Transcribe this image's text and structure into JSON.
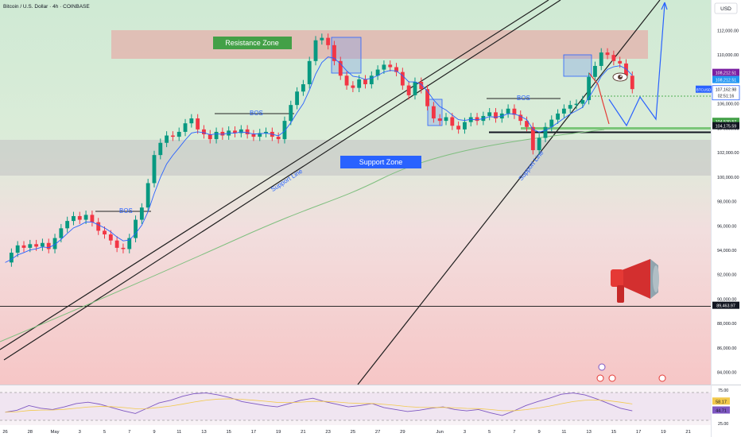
{
  "header": {
    "symbol_title": "Bitcoin / U.S. Dollar · 4h · COINBASE",
    "currency": "USD"
  },
  "chart_data": [
    {
      "type": "candlestick",
      "title": "Bitcoin / U.S. Dollar · 4h · COINBASE",
      "y_axis": {
        "range": [
          83000,
          114500
        ],
        "ticks": [
          84000,
          86000,
          88000,
          90000,
          92000,
          94000,
          96000,
          98000,
          100000,
          102000,
          104000,
          106000,
          108000,
          110000,
          112000
        ],
        "tick_labels": [
          "84,000.00",
          "86,000.00",
          "88,000.00",
          "90,000.00",
          "92,000.00",
          "94,000.00",
          "96,000.00",
          "98,000.00",
          "100,000.00",
          "102,000.00",
          "104,000.00",
          "106,000.00",
          "108,000.00",
          "110,000.00",
          "112,000.00"
        ]
      },
      "x_axis": {
        "range": [
          -0.1,
          56.5
        ],
        "ticks": [
          {
            "label": "26",
            "x": 0
          },
          {
            "label": "28",
            "x": 2
          },
          {
            "label": "May",
            "x": 4
          },
          {
            "label": "3",
            "x": 6
          },
          {
            "label": "5",
            "x": 8
          },
          {
            "label": "7",
            "x": 10
          },
          {
            "label": "9",
            "x": 12
          },
          {
            "label": "11",
            "x": 14
          },
          {
            "label": "13",
            "x": 16
          },
          {
            "label": "15",
            "x": 18
          },
          {
            "label": "17",
            "x": 20
          },
          {
            "label": "19",
            "x": 22
          },
          {
            "label": "21",
            "x": 24
          },
          {
            "label": "23",
            "x": 26
          },
          {
            "label": "25",
            "x": 28
          },
          {
            "label": "27",
            "x": 30
          },
          {
            "label": "29",
            "x": 32
          },
          {
            "label": "Jun",
            "x": 35
          },
          {
            "label": "3",
            "x": 37
          },
          {
            "label": "5",
            "x": 39
          },
          {
            "label": "7",
            "x": 41
          },
          {
            "label": "9",
            "x": 43
          },
          {
            "label": "11",
            "x": 45
          },
          {
            "label": "13",
            "x": 47
          },
          {
            "label": "15",
            "x": 49
          },
          {
            "label": "17",
            "x": 51
          },
          {
            "label": "19",
            "x": 53
          },
          {
            "label": "21",
            "x": 55
          }
        ]
      },
      "price_path": [
        [
          0,
          93000
        ],
        [
          0.5,
          93800
        ],
        [
          1,
          94400
        ],
        [
          1.5,
          94200
        ],
        [
          2,
          94500
        ],
        [
          2.5,
          94300
        ],
        [
          3,
          94600
        ],
        [
          3.5,
          94100
        ],
        [
          4,
          95000
        ],
        [
          4.5,
          95800
        ],
        [
          5,
          96400
        ],
        [
          5.5,
          96800
        ],
        [
          6,
          96500
        ],
        [
          6.5,
          96900
        ],
        [
          7,
          96300
        ],
        [
          7.5,
          95600
        ],
        [
          8,
          95300
        ],
        [
          8.5,
          94800
        ],
        [
          9,
          94200
        ],
        [
          9.5,
          94100
        ],
        [
          10,
          95000
        ],
        [
          10.5,
          96500
        ],
        [
          11,
          97500
        ],
        [
          11.5,
          99500
        ],
        [
          12,
          101800
        ],
        [
          12.5,
          102800
        ],
        [
          13,
          103400
        ],
        [
          13.5,
          103300
        ],
        [
          14,
          103700
        ],
        [
          14.5,
          104400
        ],
        [
          15,
          104800
        ],
        [
          15.5,
          103900
        ],
        [
          16,
          103500
        ],
        [
          16.5,
          103100
        ],
        [
          17,
          103700
        ],
        [
          17.5,
          103400
        ],
        [
          18,
          103800
        ],
        [
          18.5,
          103600
        ],
        [
          19,
          103900
        ],
        [
          19.5,
          103500
        ],
        [
          20,
          103300
        ],
        [
          20.5,
          103600
        ],
        [
          21,
          103700
        ],
        [
          21.5,
          103300
        ],
        [
          22,
          103100
        ],
        [
          22.5,
          104600
        ],
        [
          23,
          105900
        ],
        [
          23.5,
          107000
        ],
        [
          24,
          107600
        ],
        [
          24.5,
          109500
        ],
        [
          25,
          111200
        ],
        [
          25.5,
          111400
        ],
        [
          26,
          110800
        ],
        [
          26.5,
          109500
        ],
        [
          27,
          108300
        ],
        [
          27.5,
          107500
        ],
        [
          28,
          107300
        ],
        [
          28.5,
          108000
        ],
        [
          29,
          107600
        ],
        [
          29.5,
          108300
        ],
        [
          30,
          108800
        ],
        [
          30.5,
          109200
        ],
        [
          31,
          109000
        ],
        [
          31.5,
          108600
        ],
        [
          32,
          107500
        ],
        [
          32.5,
          106700
        ],
        [
          33,
          107800
        ],
        [
          33.5,
          107200
        ],
        [
          34,
          105800
        ],
        [
          34.5,
          104800
        ],
        [
          35,
          104600
        ],
        [
          35.5,
          104900
        ],
        [
          36,
          104200
        ],
        [
          36.5,
          103900
        ],
        [
          37,
          104500
        ],
        [
          37.5,
          104900
        ],
        [
          38,
          104600
        ],
        [
          38.5,
          105000
        ],
        [
          39,
          105300
        ],
        [
          39.5,
          104800
        ],
        [
          40,
          105200
        ],
        [
          40.5,
          105600
        ],
        [
          41,
          105100
        ],
        [
          41.5,
          104600
        ],
        [
          42,
          104100
        ],
        [
          42.5,
          102200
        ],
        [
          43,
          103200
        ],
        [
          43.5,
          104100
        ],
        [
          44,
          104700
        ],
        [
          44.5,
          105200
        ],
        [
          45,
          105600
        ],
        [
          45.5,
          105900
        ],
        [
          46,
          106000
        ],
        [
          46.5,
          106300
        ],
        [
          47,
          108200
        ],
        [
          47.5,
          109100
        ],
        [
          48,
          110200
        ],
        [
          48.5,
          110000
        ],
        [
          49,
          109500
        ],
        [
          49.5,
          109300
        ],
        [
          50,
          108300
        ],
        [
          50.5,
          107200
        ]
      ],
      "price_levels": [
        {
          "name": "current",
          "value": 107162.98,
          "label": "107,162.98",
          "symbol": "BTCUSD",
          "sublabel": "02:51:16",
          "color": "#2962ff"
        },
        {
          "name": "high-level",
          "value": 108212.51,
          "label": "108,212.51",
          "color": "#7b1fa2"
        },
        {
          "name": "mid-level",
          "value": 108212.51,
          "label": "108,212.51",
          "color": "#2196f3"
        },
        {
          "name": "green-line",
          "value": 104530.57,
          "label": "104,530.57",
          "color": "#43a047"
        },
        {
          "name": "black-line",
          "value": 104175.59,
          "label": "104,175.59",
          "color": "#131722"
        },
        {
          "name": "low-line",
          "value": 89463.97,
          "label": "89,463.97",
          "color": "#131722"
        }
      ],
      "zones": [
        {
          "name": "resistance",
          "label": "Resistance Zone",
          "from": 110500,
          "to": 112500,
          "color": "#e8a5a3"
        },
        {
          "name": "support",
          "label": "Support Zone",
          "from": 100300,
          "to": 103200,
          "color": "#bdbdbd"
        }
      ],
      "annotations": [
        "BOS",
        "BOS",
        "BOS",
        "Support Line",
        "Support Line"
      ]
    },
    {
      "type": "line",
      "name": "rsi",
      "y_axis": {
        "range": [
          25,
          80
        ],
        "ticks": [
          25,
          75
        ]
      },
      "tick_labels": [
        "25.00",
        "75.00"
      ],
      "values": [
        42,
        45,
        52,
        48,
        46,
        50,
        55,
        57,
        54,
        49,
        44,
        40,
        48,
        56,
        60,
        66,
        70,
        71,
        68,
        64,
        58,
        55,
        52,
        50,
        55,
        60,
        63,
        58,
        54,
        50,
        52,
        55,
        49,
        46,
        43,
        45,
        48,
        50,
        46,
        44,
        46,
        41,
        37,
        44,
        52,
        58,
        63,
        69,
        71,
        68,
        62,
        55,
        48,
        44
      ],
      "values_x_range": [
        0,
        50.5
      ],
      "level_labels": [
        {
          "value": 58.17,
          "label": "58.17",
          "color": "#f2c94c"
        },
        {
          "value": 44.71,
          "label": "44.71",
          "color": "#7e57c2"
        }
      ]
    }
  ]
}
